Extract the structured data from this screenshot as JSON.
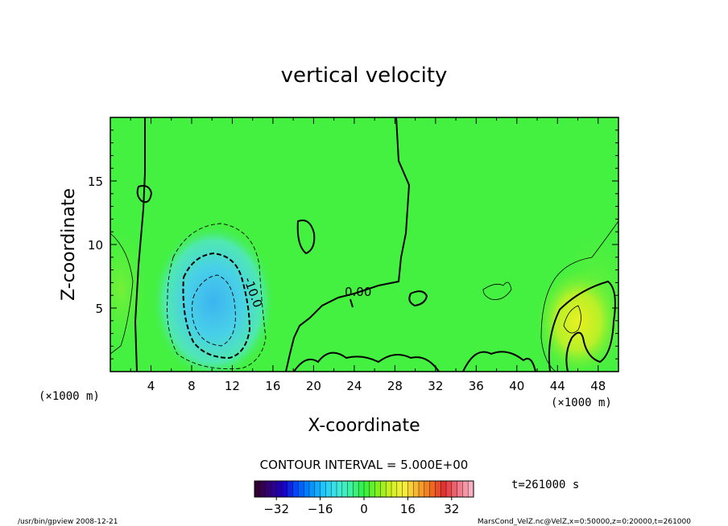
{
  "chart_data": {
    "type": "heatmap",
    "title": "vertical velocity",
    "xlabel": "X-coordinate",
    "ylabel": "Z-coordinate",
    "x_unit_left": "(×1000 m)",
    "x_unit_right": "(×1000 m)",
    "xlim": [
      0,
      50
    ],
    "ylim": [
      0,
      20
    ],
    "x_ticks": [
      4,
      8,
      12,
      16,
      20,
      24,
      28,
      32,
      36,
      40,
      44,
      48
    ],
    "y_ticks": [
      5,
      10,
      15
    ],
    "contour_interval_text": "CONTOUR INTERVAL = 5.000E+00",
    "contour_labels": [
      {
        "text": "0.00",
        "x": 25,
        "y": 6.3
      },
      {
        "text": "-10.0",
        "x": 12.8,
        "y": 6.4
      }
    ],
    "time_text": "t=261000 s",
    "colorbar": {
      "min": -40,
      "max": 40,
      "ticks": [
        -32,
        -16,
        0,
        16,
        32
      ],
      "colors": [
        "#330033",
        "#330080",
        "#1a00c8",
        "#0050ff",
        "#0090ff",
        "#20c8ff",
        "#40e8e0",
        "#40f0a0",
        "#30f040",
        "#80f020",
        "#d0f020",
        "#f8f040",
        "#f8b030",
        "#f07020",
        "#e03030",
        "#f07080",
        "#f8b0c0"
      ]
    },
    "features": [
      {
        "kind": "downdraft",
        "x": 10.5,
        "z": 4.5,
        "min_value": -15
      },
      {
        "kind": "updraft",
        "x": 45.5,
        "z": 4.0,
        "max_value": 12
      }
    ]
  },
  "footer": {
    "left": "/usr/bin/gpview   2008-12-21",
    "right": "MarsCond_VelZ.nc@VelZ,x=0:50000,z=0:20000,t=261000"
  },
  "colors": {
    "background_field": "#40f040",
    "negative_core": "#40c0f0",
    "positive_core": "#d8f020"
  }
}
